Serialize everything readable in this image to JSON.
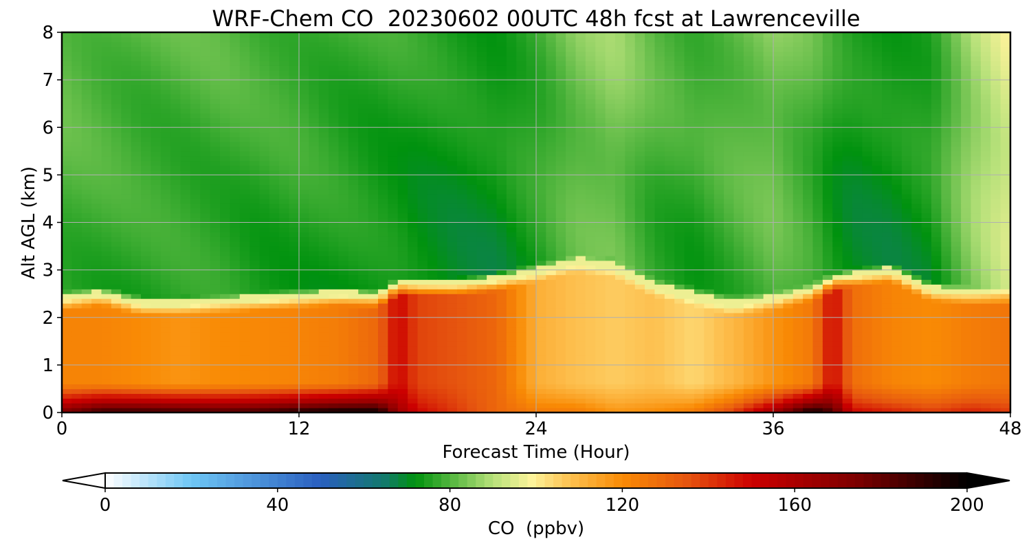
{
  "chart_data": {
    "type": "heatmap",
    "title": "WRF-Chem CO  20230602 00UTC 48h fcst at Lawrenceville",
    "xlabel": "Forecast Time (Hour)",
    "ylabel": "Alt AGL (km)",
    "xlim": [
      0,
      48
    ],
    "ylim": [
      0,
      8
    ],
    "x_ticks": [
      0,
      12,
      24,
      36,
      48
    ],
    "y_ticks": [
      0,
      1,
      2,
      3,
      4,
      5,
      6,
      7,
      8
    ],
    "grid": true,
    "colorbar": {
      "label": "CO  (ppbv)",
      "range": [
        0,
        200
      ],
      "ticks": [
        0,
        40,
        80,
        120,
        160,
        200
      ],
      "extend": "both",
      "stops": [
        {
          "value": 0,
          "color": "#ffffff"
        },
        {
          "value": 20,
          "color": "#6ec6f5"
        },
        {
          "value": 50,
          "color": "#2a5fbf"
        },
        {
          "value": 65,
          "color": "#127a6a"
        },
        {
          "value": 72,
          "color": "#00920e"
        },
        {
          "value": 90,
          "color": "#b7e17a"
        },
        {
          "value": 99,
          "color": "#fdf39a"
        },
        {
          "value": 108,
          "color": "#fdc04f"
        },
        {
          "value": 120,
          "color": "#f98b05"
        },
        {
          "value": 135,
          "color": "#e6550f"
        },
        {
          "value": 150,
          "color": "#cc0000"
        },
        {
          "value": 175,
          "color": "#7a0000"
        },
        {
          "value": 200,
          "color": "#000000"
        }
      ]
    },
    "field_description": {
      "x_hours": [
        0,
        2,
        4,
        6,
        8,
        10,
        12,
        14,
        16,
        17,
        18,
        20,
        22,
        24,
        26,
        28,
        30,
        32,
        34,
        36,
        38,
        39,
        40,
        42,
        44,
        46,
        48
      ],
      "boundary_layer_top_km": [
        2.3,
        2.4,
        2.2,
        2.2,
        2.25,
        2.3,
        2.35,
        2.4,
        2.35,
        2.6,
        2.6,
        2.6,
        2.7,
        2.9,
        3.1,
        3.0,
        2.6,
        2.4,
        2.2,
        2.3,
        2.5,
        2.7,
        2.8,
        2.9,
        2.5,
        2.4,
        2.4
      ],
      "boundary_layer_co_ppbv": [
        122,
        122,
        120,
        118,
        120,
        121,
        122,
        124,
        130,
        150,
        138,
        135,
        130,
        112,
        108,
        106,
        108,
        104,
        110,
        118,
        125,
        150,
        128,
        122,
        120,
        124,
        126
      ],
      "surface_layer_co_ppbv": [
        175,
        190,
        190,
        188,
        185,
        188,
        195,
        200,
        200,
        165,
        150,
        140,
        130,
        125,
        125,
        118,
        120,
        125,
        140,
        165,
        200,
        185,
        150,
        145,
        140,
        145,
        140
      ],
      "free_troposphere_co_ppbv": [
        77,
        76,
        75,
        75,
        75,
        74,
        74,
        73,
        72,
        72,
        71,
        70,
        70,
        74,
        80,
        82,
        76,
        74,
        77,
        80,
        76,
        72,
        70,
        70,
        72,
        84,
        92
      ]
    }
  }
}
